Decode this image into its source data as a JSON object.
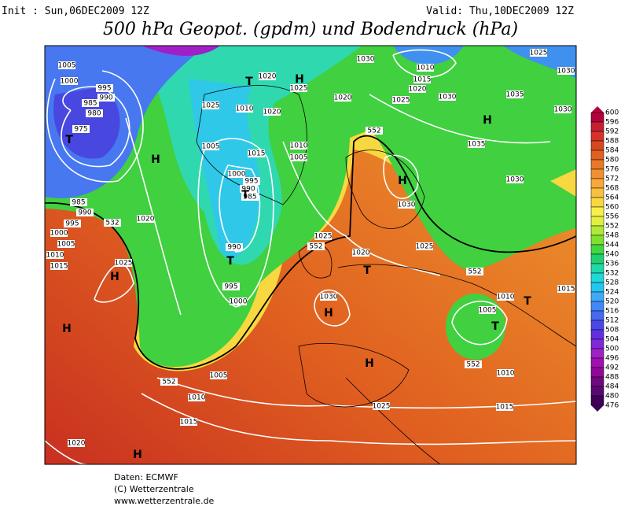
{
  "header": {
    "init": "Init : Sun,06DEC2009 12Z",
    "valid": "Valid: Thu,10DEC2009 12Z",
    "title": "500 hPa Geopot. (gpdm) und Bodendruck (hPa)"
  },
  "map": {
    "labels": [
      "1005",
      "1000",
      "995",
      "990",
      "985",
      "980",
      "975",
      "T",
      "985",
      "990",
      "995",
      "1000",
      "1005",
      "1010",
      "1015",
      "532",
      "1020",
      "1025",
      "H",
      "H",
      "H",
      "1025",
      "1010",
      "T",
      "1020",
      "H",
      "1025",
      "1020",
      "1005",
      "1015",
      "1010",
      "1005",
      "1000",
      "995",
      "990",
      "985",
      "T",
      "990",
      "T",
      "995",
      "1000",
      "1030",
      "1010",
      "1015",
      "1020",
      "1025",
      "1030",
      "1035",
      "H",
      "1025",
      "1030",
      "1030",
      "1020",
      "552",
      "1035",
      "H",
      "1030",
      "1030",
      "1025",
      "552",
      "1020",
      "T",
      "1025",
      "552",
      "1030",
      "H",
      "1010",
      "T",
      "1005",
      "T",
      "1015",
      "H",
      "552",
      "1010",
      "1025",
      "1015",
      "552",
      "1005",
      "1010",
      "1015",
      "1020",
      "H"
    ]
  },
  "colorbar": {
    "levels": [
      600,
      596,
      592,
      588,
      584,
      580,
      576,
      572,
      568,
      564,
      560,
      556,
      552,
      548,
      544,
      540,
      536,
      532,
      528,
      524,
      520,
      516,
      512,
      508,
      504,
      500,
      496,
      492,
      488,
      484,
      480,
      476
    ]
  },
  "footer": [
    "Daten: ECMWF",
    "(C) Wetterzentrale",
    "www.wetterzentrale.de"
  ]
}
